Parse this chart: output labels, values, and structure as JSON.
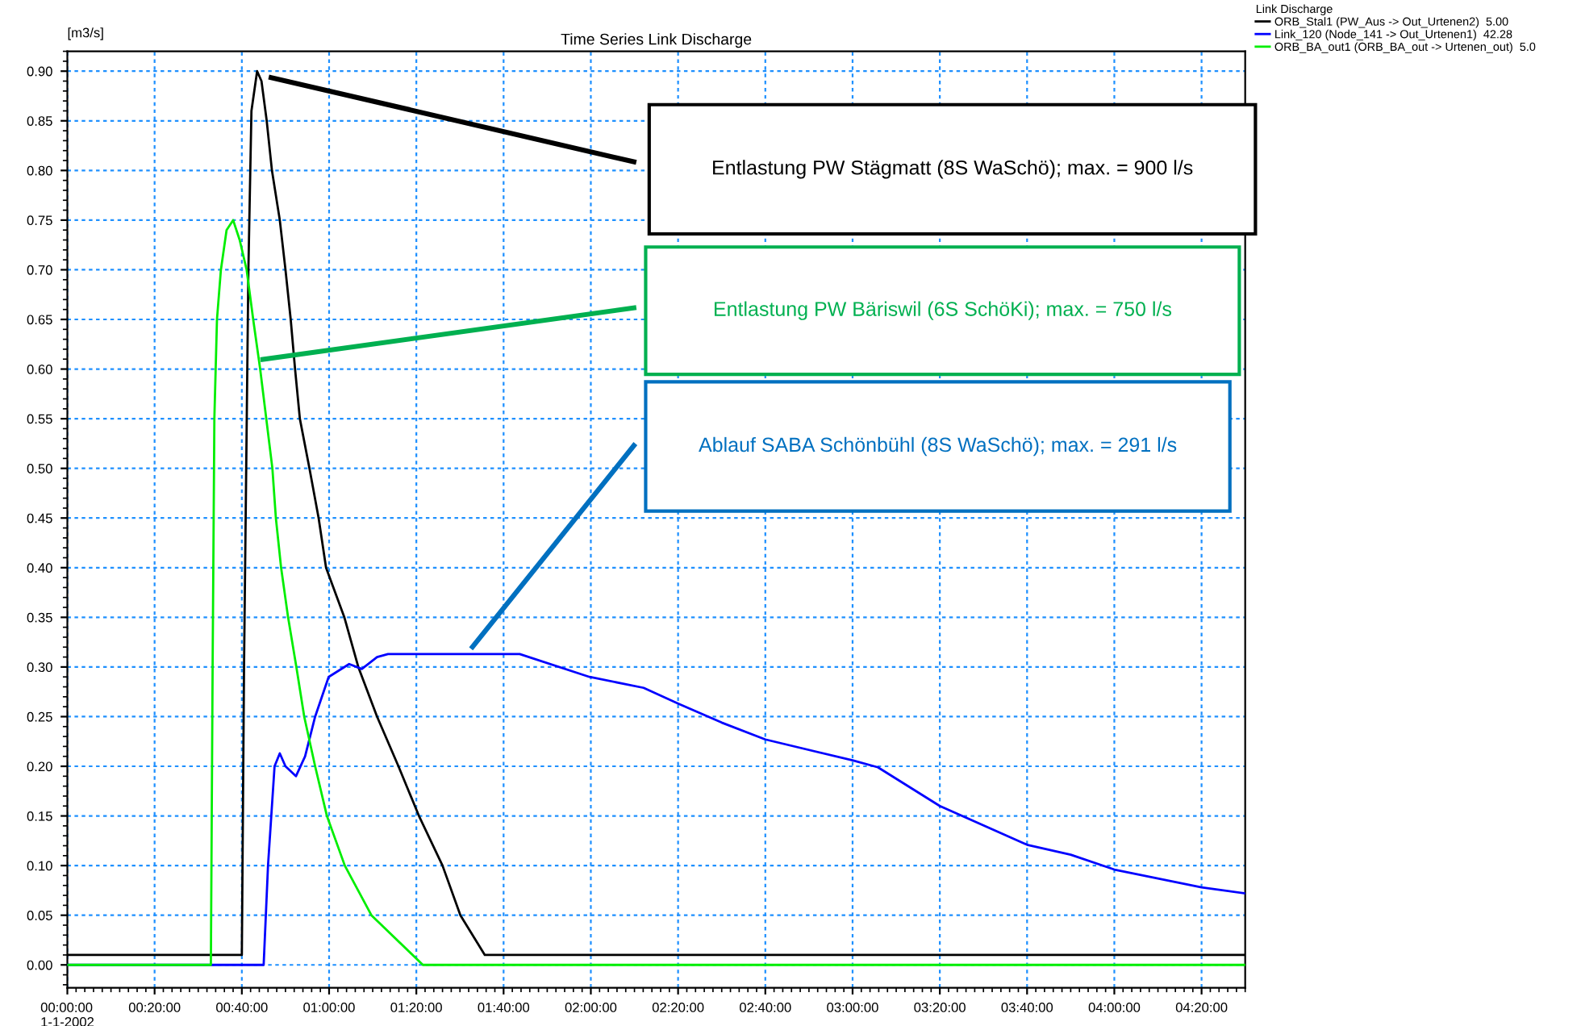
{
  "chart_data": {
    "type": "line",
    "title": "Time Series Link Discharge",
    "ylabel": "[m3/s]",
    "legend_title": "Link Discharge",
    "legend": "right",
    "grid": true,
    "marker": "none",
    "line_style": "solid",
    "xlim": [
      "2002-01-01T00:00",
      "2002-01-01T04:30"
    ],
    "xticks": [
      {
        "value": "2002-01-01T00:00",
        "label": "00:00:00\n1-1-2002"
      },
      {
        "value": "2002-01-01T00:20",
        "label": "00:20:00"
      },
      {
        "value": "2002-01-01T00:40",
        "label": "00:40:00"
      },
      {
        "value": "2002-01-01T01:00",
        "label": "01:00:00"
      },
      {
        "value": "2002-01-01T01:20",
        "label": "01:20:00"
      },
      {
        "value": "2002-01-01T01:40",
        "label": "01:40:00"
      },
      {
        "value": "2002-01-01T02:00",
        "label": "02:00:00"
      },
      {
        "value": "2002-01-01T02:20",
        "label": "02:20:00"
      },
      {
        "value": "2002-01-01T02:40",
        "label": "02:40:00"
      },
      {
        "value": "2002-01-01T03:00",
        "label": "03:00:00"
      },
      {
        "value": "2002-01-01T03:20",
        "label": "03:20:00"
      },
      {
        "value": "2002-01-01T03:40",
        "label": "03:40:00"
      },
      {
        "value": "2002-01-01T04:00",
        "label": "04:00:00"
      },
      {
        "value": "2002-01-01T04:20",
        "label": "04:20:00"
      }
    ],
    "ylim": [
      -0.023,
      0.92
    ],
    "yticks": [
      {
        "value": 0,
        "label": "0.00"
      },
      {
        "value": 0.05,
        "label": "0.05"
      },
      {
        "value": 0.1,
        "label": "0.10"
      },
      {
        "value": 0.15,
        "label": "0.15"
      },
      {
        "value": 0.2,
        "label": "0.20"
      },
      {
        "value": 0.25,
        "label": "0.25"
      },
      {
        "value": 0.3,
        "label": "0.30"
      },
      {
        "value": 0.35,
        "label": "0.35"
      },
      {
        "value": 0.4,
        "label": "0.40"
      },
      {
        "value": 0.45,
        "label": "0.45"
      },
      {
        "value": 0.5,
        "label": "0.50"
      },
      {
        "value": 0.55,
        "label": "0.55"
      },
      {
        "value": 0.6,
        "label": "0.60"
      },
      {
        "value": 0.65,
        "label": "0.65"
      },
      {
        "value": 0.7,
        "label": "0.70"
      },
      {
        "value": 0.75,
        "label": "0.75"
      },
      {
        "value": 0.8,
        "label": "0.80"
      },
      {
        "value": 0.85,
        "label": "0.85"
      },
      {
        "value": 0.9,
        "label": "0.90"
      }
    ],
    "series": [
      {
        "name": "ORB_Stal1 (PW_Aus -> Out_Urtenen2)  5.00",
        "color": "#000000",
        "x": [
          "2002-01-01T00:00",
          "2002-01-01T00:40:00",
          "2002-01-01T00:40:30",
          "2002-01-01T00:41:30",
          "2002-01-01T00:42:12",
          "2002-01-01T00:43:30",
          "2002-01-01T00:44:30",
          "2002-01-01T00:45:42",
          "2002-01-01T00:46:54",
          "2002-01-01T00:48:42",
          "2002-01-01T00:50:00",
          "2002-01-01T00:51:12",
          "2002-01-01T00:52:12",
          "2002-01-01T00:53:18",
          "2002-01-01T00:55:30",
          "2002-01-01T00:57:36",
          "2002-01-01T00:59:18",
          "2002-01-01T01:03:30",
          "2002-01-01T01:06:42",
          "2002-01-01T01:11:00",
          "2002-01-01T01:15:54",
          "2002-01-01T01:20:36",
          "2002-01-01T01:26:00",
          "2002-01-01T01:30:06",
          "2002-01-01T01:35:42",
          "2002-01-01T04:30"
        ],
        "values": [
          0.01,
          0.01,
          0.3,
          0.7,
          0.86,
          0.9,
          0.89,
          0.85,
          0.8,
          0.75,
          0.7,
          0.65,
          0.6,
          0.55,
          0.5,
          0.45,
          0.4,
          0.35,
          0.3,
          0.25,
          0.2,
          0.15,
          0.1,
          0.05,
          0.01,
          0.01
        ]
      },
      {
        "name": "Link_120 (Node_141 -> Out_Urtenen1)  42.28",
        "color": "#0000ff",
        "x": [
          "2002-01-01T00:00",
          "2002-01-01T00:45:00",
          "2002-01-01T00:46:00",
          "2002-01-01T00:47:30",
          "2002-01-01T00:48:42",
          "2002-01-01T00:50:00",
          "2002-01-01T00:52:24",
          "2002-01-01T00:54:30",
          "2002-01-01T00:56:48",
          "2002-01-01T00:59:54",
          "2002-01-01T01:04:36",
          "2002-01-01T01:07:30",
          "2002-01-01T01:11:00",
          "2002-01-01T01:13:30",
          "2002-01-01T01:43:42",
          "2002-01-01T01:59:42",
          "2002-01-01T02:12:06",
          "2002-01-01T02:20:06",
          "2002-01-01T02:30:00",
          "2002-01-01T02:40:00",
          "2002-01-01T03:00:00",
          "2002-01-01T03:05:48",
          "2002-01-01T03:20:00",
          "2002-01-01T03:40:00",
          "2002-01-01T03:50:00",
          "2002-01-01T04:00:00",
          "2002-01-01T04:20:00",
          "2002-01-01T04:30"
        ],
        "values": [
          0,
          0,
          0.1,
          0.2,
          0.213,
          0.2,
          0.19,
          0.21,
          0.25,
          0.29,
          0.303,
          0.298,
          0.31,
          0.313,
          0.313,
          0.29,
          0.279,
          0.263,
          0.244,
          0.227,
          0.206,
          0.199,
          0.16,
          0.121,
          0.111,
          0.096,
          0.078,
          0.072
        ]
      },
      {
        "name": "ORB_BA_out1 (ORB_BA_out -> Urtenen_out)  5.0",
        "color": "#00ee00",
        "x": [
          "2002-01-01T00:00",
          "2002-01-01T00:32:54",
          "2002-01-01T00:33:18",
          "2002-01-01T00:33:42",
          "2002-01-01T00:34:18",
          "2002-01-01T00:35:12",
          "2002-01-01T00:36:30",
          "2002-01-01T00:38:00",
          "2002-01-01T00:39:30",
          "2002-01-01T00:41:06",
          "2002-01-01T00:42:36",
          "2002-01-01T00:44:12",
          "2002-01-01T00:47:00",
          "2002-01-01T00:47:48",
          "2002-01-01T00:49:00",
          "2002-01-01T00:50:36",
          "2002-01-01T00:52:30",
          "2002-01-01T00:54:18",
          "2002-01-01T00:56:48",
          "2002-01-01T00:59:30",
          "2002-01-01T01:03:36",
          "2002-01-01T01:09:42",
          "2002-01-01T01:21:30",
          "2002-01-01T04:30"
        ],
        "values": [
          0,
          0,
          0.3,
          0.55,
          0.65,
          0.7,
          0.74,
          0.75,
          0.73,
          0.7,
          0.65,
          0.6,
          0.5,
          0.45,
          0.4,
          0.35,
          0.3,
          0.25,
          0.2,
          0.15,
          0.1,
          0.05,
          0,
          0
        ]
      }
    ],
    "annotations": [
      "Entlastung PW Stägmatt (8S WaSchö); max. = 900 l/s",
      "Entlastung PW Bäriswil (6S SchöKi); max. = 750 l/s",
      "Ablauf SABA Schönbühl (8S WaSchö); max. = 291 l/s"
    ]
  }
}
